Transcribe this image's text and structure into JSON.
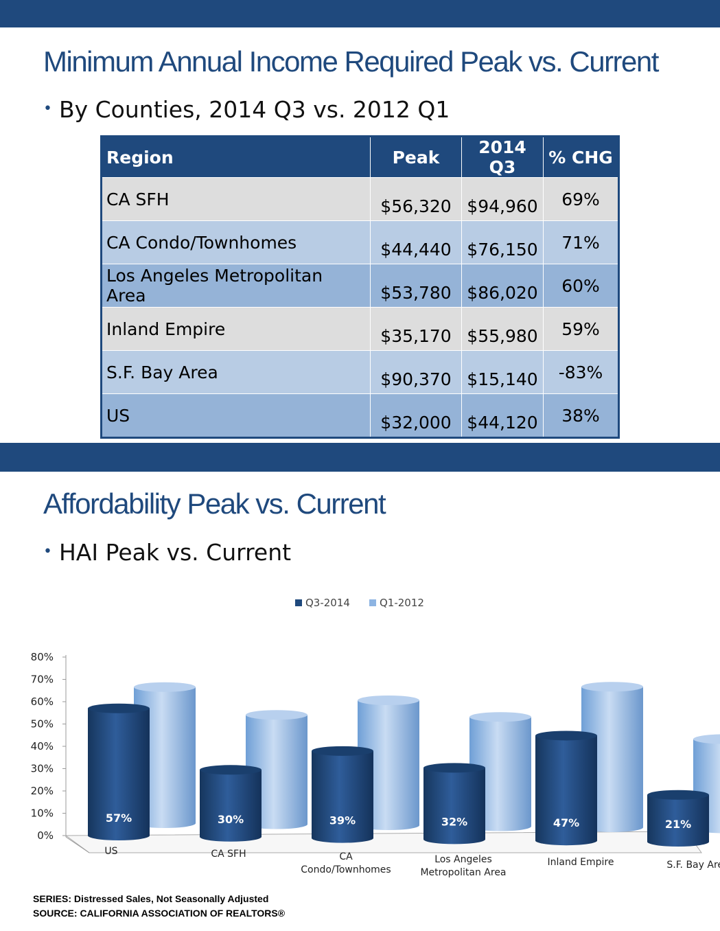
{
  "section1": {
    "title": "Minimum Annual Income Required Peak vs. Current",
    "bullet": "By Counties, 2014 Q3 vs. 2012 Q1",
    "table": {
      "headers": [
        "Region",
        "Peak",
        "2014 Q3",
        "% CHG"
      ],
      "rows": [
        [
          "CA SFH",
          "$56,320",
          "$94,960",
          "69%"
        ],
        [
          "CA Condo/Townhomes",
          "$44,440",
          "$76,150",
          "71%"
        ],
        [
          "Los Angeles Metropolitan Area",
          "$53,780",
          "$86,020",
          "60%"
        ],
        [
          "Inland Empire",
          "$35,170",
          "$55,980",
          "59%"
        ],
        [
          "S.F. Bay Area",
          "$90,370",
          "$15,140",
          "-83%"
        ],
        [
          "US",
          "$32,000",
          "$44,120",
          "38%"
        ]
      ]
    }
  },
  "section2": {
    "title": "Affordability Peak vs. Current",
    "bullet": "HAI Peak vs. Current"
  },
  "chart_data": {
    "type": "bar",
    "categories": [
      "US",
      "CA SFH",
      "CA Condo/Townhomes",
      "Los Angeles Metropolitan Area",
      "Inland Empire",
      "S.F. Bay Area"
    ],
    "category_display": [
      [
        "US"
      ],
      [
        "CA SFH"
      ],
      [
        "CA",
        "Condo/Townhomes"
      ],
      [
        "Los Angeles",
        "Metropolitan Area"
      ],
      [
        "Inland Empire"
      ],
      [
        "S.F. Bay Area"
      ]
    ],
    "series": [
      {
        "name": "Q3-2014",
        "values": [
          57,
          30,
          39,
          32,
          47,
          21
        ],
        "labels": [
          "57%",
          "30%",
          "39%",
          "32%",
          "47%",
          "21%"
        ],
        "color": "#1f497d"
      },
      {
        "name": "Q1-2012",
        "values": [
          61,
          49,
          56,
          49,
          63,
          40
        ],
        "color": "#8db4e2"
      }
    ],
    "yticks": [
      "0%",
      "10%",
      "20%",
      "30%",
      "40%",
      "50%",
      "60%",
      "70%",
      "80%"
    ],
    "ylim": [
      0,
      80
    ],
    "legend_position": "top",
    "grid": false,
    "style": "3d-cylinder"
  },
  "footer": {
    "series_note": "SERIES: Distressed Sales, Not Seasonally Adjusted",
    "source_note": "SOURCE:  CALIFORNIA ASSOCIATION OF REALTORS®"
  }
}
